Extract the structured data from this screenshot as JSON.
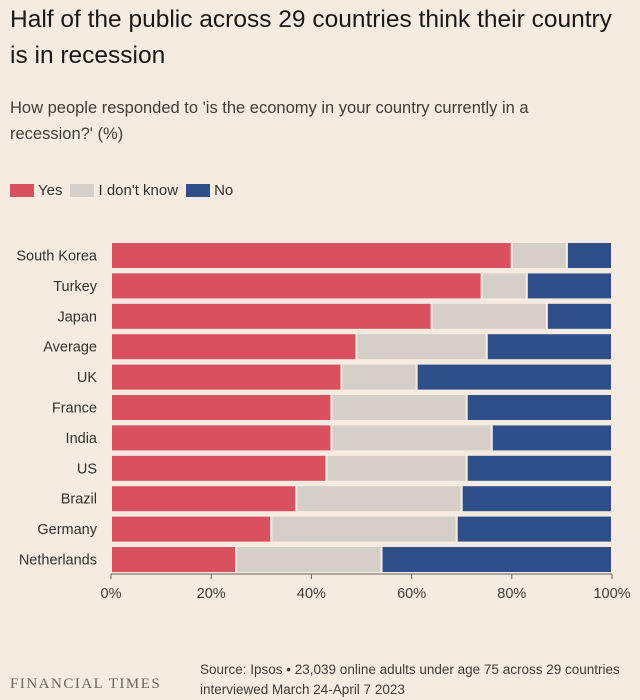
{
  "title": "Half of the public across 29 countries think their country is in recession",
  "subtitle": "How people responded to 'is the economy in your country currently in a recession?' (%)",
  "legend": [
    {
      "label": "Yes",
      "color": "#d9505e"
    },
    {
      "label": "I don't know",
      "color": "#d6cfc9"
    },
    {
      "label": "No",
      "color": "#2e4f8a"
    }
  ],
  "source": "Source: Ipsos • 23,039 online adults under age 75 across 29 countries interviewed March 24-April 7 2023",
  "brand": "FINANCIAL TIMES",
  "chart_data": {
    "type": "bar",
    "orientation": "horizontal",
    "stacked": true,
    "normalized": true,
    "categories": [
      "South Korea",
      "Turkey",
      "Japan",
      "Average",
      "UK",
      "France",
      "India",
      "US",
      "Brazil",
      "Germany",
      "Netherlands"
    ],
    "series": [
      {
        "name": "Yes",
        "color": "#d9505e",
        "values": [
          80,
          74,
          64,
          49,
          46,
          44,
          44,
          43,
          37,
          32,
          25
        ]
      },
      {
        "name": "I don't know",
        "color": "#d6cfc9",
        "values": [
          11,
          9,
          23,
          26,
          15,
          27,
          32,
          28,
          33,
          37,
          29
        ]
      },
      {
        "name": "No",
        "color": "#2e4f8a",
        "values": [
          9,
          17,
          13,
          25,
          39,
          29,
          24,
          29,
          30,
          31,
          46
        ]
      }
    ],
    "xlim": [
      0,
      100
    ],
    "xticks": [
      "0%",
      "20%",
      "40%",
      "60%",
      "80%",
      "100%"
    ],
    "xlabel": "",
    "ylabel": "",
    "legend_position": "top-left",
    "grid": false
  }
}
